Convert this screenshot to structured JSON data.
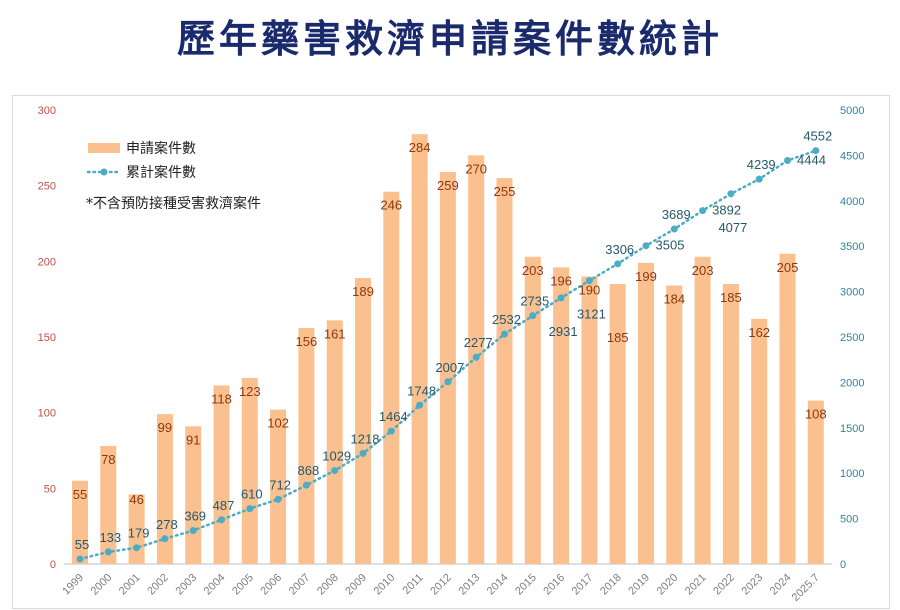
{
  "title": "歷年藥害救濟申請案件數統計",
  "chart_data": {
    "type": "bar+line",
    "title": "歷年藥害救濟申請案件數統計",
    "categories": [
      "1999",
      "2000",
      "2001",
      "2002",
      "2003",
      "2004",
      "2005",
      "2006",
      "2007",
      "2008",
      "2009",
      "2010",
      "2011",
      "2012",
      "2013",
      "2014",
      "2015",
      "2016",
      "2017",
      "2018",
      "2019",
      "2020",
      "2021",
      "2022",
      "2023",
      "2024",
      "2025.7"
    ],
    "series": [
      {
        "name": "申請案件數",
        "type": "bar",
        "axis": "left",
        "color": "#fac090",
        "values": [
          55,
          78,
          46,
          99,
          91,
          118,
          123,
          102,
          156,
          161,
          189,
          246,
          284,
          259,
          270,
          255,
          203,
          196,
          190,
          185,
          199,
          184,
          203,
          185,
          162,
          205,
          108
        ]
      },
      {
        "name": "累計案件數",
        "type": "line",
        "axis": "right",
        "color": "#4bacc6",
        "values": [
          55,
          133,
          179,
          278,
          369,
          487,
          610,
          712,
          868,
          1029,
          1218,
          1464,
          1748,
          2007,
          2277,
          2532,
          2735,
          2931,
          3121,
          3306,
          3505,
          3689,
          3892,
          4077,
          4239,
          4444,
          4552
        ]
      }
    ],
    "y_left": {
      "min": 0,
      "max": 300,
      "ticks": [
        0,
        50,
        100,
        150,
        200,
        250,
        300
      ]
    },
    "y_right": {
      "min": 0,
      "max": 5000,
      "ticks": [
        0,
        500,
        1000,
        1500,
        2000,
        2500,
        3000,
        3500,
        4000,
        4500,
        5000
      ]
    },
    "legend_position": "top-left",
    "note": "*不含預防接種受害救濟案件",
    "grid": false
  }
}
